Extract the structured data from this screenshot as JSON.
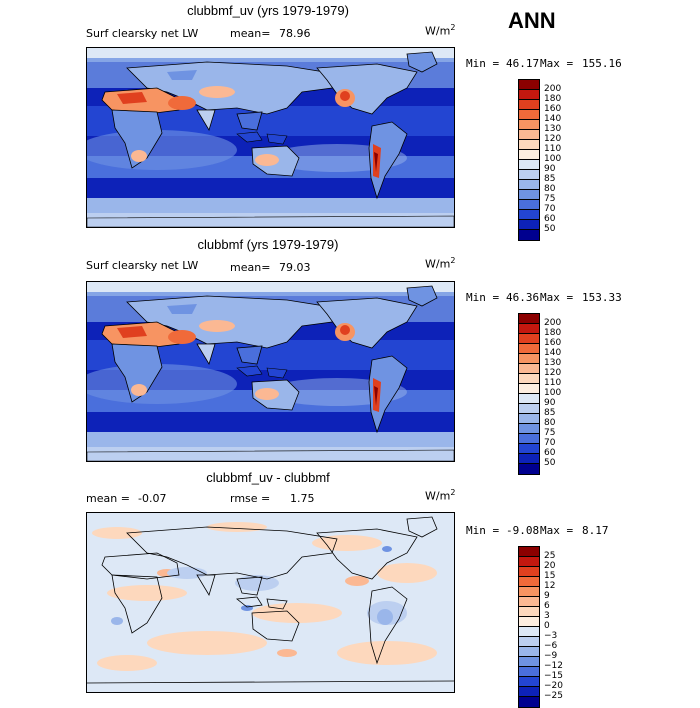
{
  "season": "ANN",
  "panels": [
    {
      "title": "clubbmf_uv (yrs 1979-1979)",
      "variable": "Surf clearsky net LW",
      "mean_label": "mean=",
      "mean_value": "78.96",
      "units": "W/m",
      "units_exp": "2",
      "min_label": "Min =",
      "min_value": "46.17",
      "max_label": "Max =",
      "max_value": "155.16"
    },
    {
      "title": "clubbmf (yrs 1979-1979)",
      "variable": "Surf clearsky net LW",
      "mean_label": "mean=",
      "mean_value": "79.03",
      "units": "W/m",
      "units_exp": "2",
      "min_label": "Min =",
      "min_value": "46.36",
      "max_label": "Max =",
      "max_value": "153.33"
    },
    {
      "title": "clubbmf_uv - clubbmf",
      "mean_label": "mean =",
      "mean_value": "-0.07",
      "rmse_label": "rmse =",
      "rmse_value": "1.75",
      "units": "W/m",
      "units_exp": "2",
      "min_label": "Min =",
      "min_value": "-9.08",
      "max_label": "Max =",
      "max_value": "8.17"
    }
  ],
  "chart_data": [
    {
      "type": "heatmap",
      "title": "clubbmf_uv (yrs 1979-1979)",
      "variable": "Surf clearsky net LW",
      "units": "W/m2",
      "mean": 78.96,
      "min": 46.17,
      "max": 155.16,
      "colorbar_levels": [
        200,
        180,
        160,
        140,
        130,
        120,
        110,
        100,
        90,
        85,
        80,
        75,
        70,
        60,
        50
      ],
      "colorbar_colors": [
        "#8b0000",
        "#c3180f",
        "#e0401f",
        "#f06a3a",
        "#f79462",
        "#fbb893",
        "#fdd8bd",
        "#fdeee0",
        "#dde8f6",
        "#bccff0",
        "#9ab6ea",
        "#6f93e2",
        "#4a6fdc",
        "#2345d2",
        "#0d22b8",
        "#00008f"
      ]
    },
    {
      "type": "heatmap",
      "title": "clubbmf (yrs 1979-1979)",
      "variable": "Surf clearsky net LW",
      "units": "W/m2",
      "mean": 79.03,
      "min": 46.36,
      "max": 153.33,
      "colorbar_levels": [
        200,
        180,
        160,
        140,
        130,
        120,
        110,
        100,
        90,
        85,
        80,
        75,
        70,
        60,
        50
      ],
      "colorbar_colors": [
        "#8b0000",
        "#c3180f",
        "#e0401f",
        "#f06a3a",
        "#f79462",
        "#fbb893",
        "#fdd8bd",
        "#fdeee0",
        "#dde8f6",
        "#bccff0",
        "#9ab6ea",
        "#6f93e2",
        "#4a6fdc",
        "#2345d2",
        "#0d22b8",
        "#00008f"
      ]
    },
    {
      "type": "heatmap",
      "title": "clubbmf_uv - clubbmf",
      "units": "W/m2",
      "mean": -0.07,
      "rmse": 1.75,
      "min": -9.08,
      "max": 8.17,
      "colorbar_levels": [
        25,
        20,
        15,
        12,
        9,
        6,
        3,
        0,
        -3,
        -6,
        -9,
        -12,
        -15,
        -20,
        -25
      ],
      "colorbar_colors": [
        "#8b0000",
        "#c3180f",
        "#e0401f",
        "#f06a3a",
        "#f79462",
        "#fbb893",
        "#fdd8bd",
        "#fdeee0",
        "#dde8f6",
        "#bccff0",
        "#9ab6ea",
        "#6f93e2",
        "#4a6fdc",
        "#2345d2",
        "#0d22b8",
        "#00008f"
      ]
    }
  ]
}
